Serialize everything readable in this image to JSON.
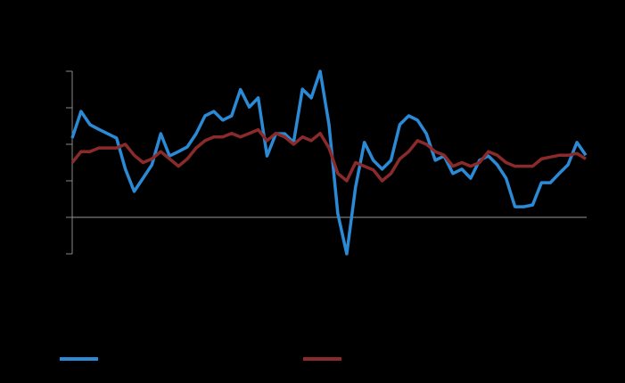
{
  "chart_data": {
    "type": "line",
    "categories": [
      null,
      null,
      null,
      null,
      null,
      null,
      null,
      null,
      null,
      null,
      null,
      null,
      null,
      null,
      null,
      null,
      null,
      null,
      null,
      null,
      null,
      null,
      null,
      null,
      null,
      null,
      null,
      null,
      null,
      null,
      null,
      null,
      null,
      null,
      null,
      null,
      null,
      null,
      null,
      null,
      null,
      null,
      null,
      null,
      null,
      null,
      null,
      null,
      null,
      null,
      null,
      null,
      null,
      null,
      null,
      null,
      null,
      null,
      null
    ],
    "series": [
      {
        "color": "#2b8ad6",
        "values": [
          2.17,
          2.9,
          2.54,
          2.41,
          2.29,
          2.17,
          1.32,
          0.71,
          1.07,
          1.44,
          2.29,
          1.68,
          1.8,
          1.93,
          2.29,
          2.78,
          2.9,
          2.66,
          2.78,
          3.5,
          3.02,
          3.27,
          1.68,
          2.29,
          2.29,
          2.05,
          3.51,
          3.27,
          4,
          2.54,
          0.1,
          -1,
          0.83,
          2.05,
          1.56,
          1.32,
          1.56,
          2.54,
          2.78,
          2.66,
          2.29,
          1.56,
          1.68,
          1.2,
          1.32,
          1.07,
          1.56,
          1.68,
          1.44,
          1.07,
          0.29,
          0.29,
          0.34,
          0.95,
          0.95,
          1.2,
          1.44,
          2.05,
          1.7
        ]
      },
      {
        "color": "#8b2a2a",
        "values": [
          1.5,
          1.8,
          1.8,
          1.9,
          1.9,
          1.9,
          2.0,
          1.7,
          1.5,
          1.6,
          1.8,
          1.6,
          1.4,
          1.6,
          1.9,
          2.1,
          2.2,
          2.2,
          2.3,
          2.2,
          2.3,
          2.4,
          2.1,
          2.3,
          2.2,
          2.0,
          2.2,
          2.1,
          2.3,
          1.9,
          1.2,
          1.0,
          1.5,
          1.4,
          1.3,
          1.0,
          1.2,
          1.6,
          1.8,
          2.1,
          2.0,
          1.8,
          1.7,
          1.4,
          1.5,
          1.4,
          1.5,
          1.8,
          1.7,
          1.5,
          1.4,
          1.4,
          1.4,
          1.6,
          1.65,
          1.7,
          1.7,
          1.75,
          1.6
        ]
      }
    ],
    "ylim": [
      -1,
      4
    ],
    "yticks": [
      -1,
      0,
      1,
      2,
      3,
      4
    ]
  }
}
